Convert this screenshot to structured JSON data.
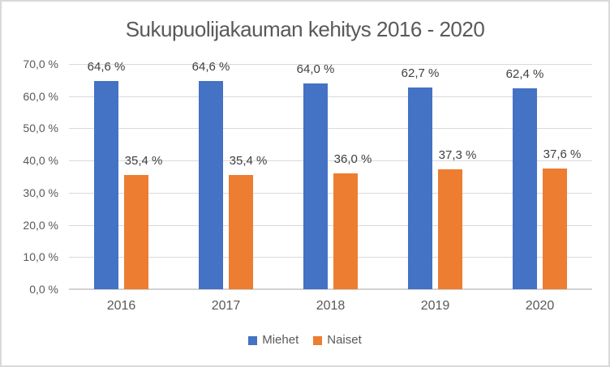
{
  "window": {
    "background": "#FFFFFF",
    "border_color": "#D9D9D9"
  },
  "chart_data": {
    "type": "bar",
    "title": "Sukupuolijakauman kehitys 2016 - 2020",
    "categories": [
      "2016",
      "2017",
      "2018",
      "2019",
      "2020"
    ],
    "series": [
      {
        "name": "Miehet",
        "color": "#4472C4",
        "values": [
          64.6,
          64.6,
          64.0,
          62.7,
          62.4
        ],
        "data_labels": [
          "64,6 %",
          "64,6 %",
          "64,0 %",
          "62,7 %",
          "62,4 %"
        ]
      },
      {
        "name": "Naiset",
        "color": "#ED7D31",
        "values": [
          35.4,
          35.4,
          36.0,
          37.3,
          37.6
        ],
        "data_labels": [
          "35,4 %",
          "35,4 %",
          "36,0 %",
          "37,3 %",
          "37,6 %"
        ]
      }
    ],
    "xlabel": "",
    "ylabel": "",
    "ylim": [
      0,
      70
    ],
    "ytick_step": 10,
    "ytick_labels": [
      "0,0 %",
      "10,0 %",
      "20,0 %",
      "30,0 %",
      "40,0 %",
      "50,0 %",
      "60,0 %",
      "70,0 %"
    ],
    "grid": true,
    "gridline_color": "#D9D9D9",
    "axis_text_color": "#595959",
    "data_label_color": "#404040",
    "legend_position": "bottom"
  }
}
